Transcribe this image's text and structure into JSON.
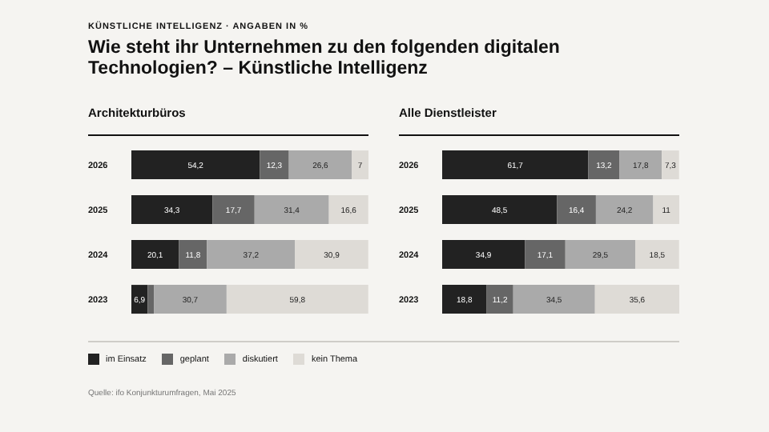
{
  "chart_data": [
    {
      "type": "other",
      "subtitle": "KÜNSTLICHE INTELLIGENZ · ANGABEN IN %",
      "title": "Wie steht ihr Unternehmen zu den folgenden digitalen Technologien? – Künstliche Intelligenz"
    },
    {
      "type": "bar",
      "orientation": "horizontal",
      "stacked": true,
      "title": "Architekturbüros",
      "categories": [
        "2026",
        "2025",
        "2024",
        "2023"
      ],
      "tick_labels": "y",
      "legend": "bottom",
      "series": [
        {
          "name": "im Einsatz",
          "color": "#222222",
          "values": [
            54.2,
            34.3,
            20.1,
            6.9
          ],
          "value_labels": [
            "54,2",
            "34,3",
            "20,1",
            "6,9"
          ]
        },
        {
          "name": "geplant",
          "color": "#666666",
          "values": [
            12.3,
            17.7,
            11.8,
            2.6
          ],
          "value_labels": [
            "12,3",
            "17,7",
            "11,8",
            null
          ]
        },
        {
          "name": "diskutiert",
          "color": "#aaaaaa",
          "values": [
            26.6,
            31.4,
            37.2,
            30.7
          ],
          "value_labels": [
            "26,6",
            "31,4",
            "37,2",
            "30,7"
          ]
        },
        {
          "name": "kein Thema",
          "color": "#dedbd6",
          "values": [
            7,
            16.6,
            30.9,
            59.8
          ],
          "value_labels": [
            "7",
            "16,6",
            "30,9",
            "59,8"
          ]
        }
      ]
    },
    {
      "type": "bar",
      "orientation": "horizontal",
      "stacked": true,
      "title": "Alle Dienstleister",
      "categories": [
        "2026",
        "2025",
        "2024",
        "2023"
      ],
      "tick_labels": "y",
      "annotations": [
        "Quelle: ifo Konjunkturumfragen, Mai 2025"
      ],
      "series": [
        {
          "color": "#222222",
          "values": [
            61.7,
            48.5,
            34.9,
            18.8
          ],
          "value_labels": [
            "61,7",
            "48,5",
            "34,9",
            "18,8"
          ]
        },
        {
          "color": "#666666",
          "values": [
            13.2,
            16.4,
            17.1,
            11.2
          ],
          "value_labels": [
            "13,2",
            "16,4",
            "17,1",
            "11,2"
          ]
        },
        {
          "color": "#aaaaaa",
          "values": [
            17.8,
            24.2,
            29.5,
            34.5
          ],
          "value_labels": [
            "17,8",
            "24,2",
            "29,5",
            "34,5"
          ]
        },
        {
          "color": "#dedbd6",
          "values": [
            7.3,
            11,
            18.5,
            35.6
          ],
          "value_labels": [
            "7,3",
            "11",
            "18,5",
            "35,6"
          ]
        }
      ]
    }
  ]
}
